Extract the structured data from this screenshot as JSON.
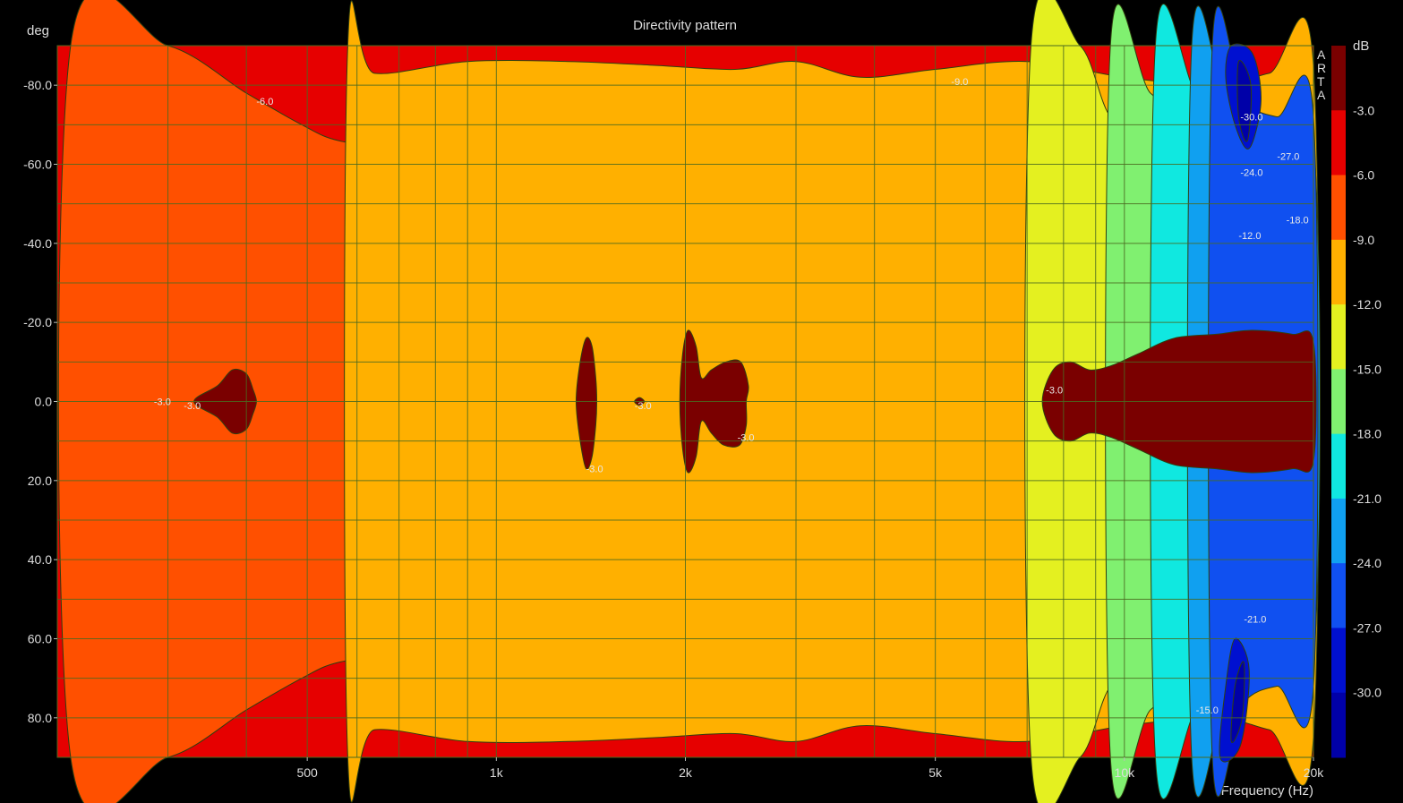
{
  "chart_data": {
    "type": "heatmap",
    "title": "Directivity pattern",
    "xlabel": "Frequency (Hz)",
    "ylabel": "deg",
    "watermark": "ARTA",
    "x_scale": "log",
    "xlim": [
      200,
      20000
    ],
    "x_ticks": [
      {
        "v": 500,
        "label": "500"
      },
      {
        "v": 1000,
        "label": "1k"
      },
      {
        "v": 2000,
        "label": "2k"
      },
      {
        "v": 5000,
        "label": "5k"
      },
      {
        "v": 10000,
        "label": "10k"
      },
      {
        "v": 20000,
        "label": "20k"
      }
    ],
    "ylim": [
      -90,
      90
    ],
    "y_ticks": [
      {
        "v": -80,
        "label": "-80.0"
      },
      {
        "v": -60,
        "label": "-60.0"
      },
      {
        "v": -40,
        "label": "-40.0"
      },
      {
        "v": -20,
        "label": "-20.0"
      },
      {
        "v": 0,
        "label": "0.0"
      },
      {
        "v": 20,
        "label": "20.0"
      },
      {
        "v": 40,
        "label": "40.0"
      },
      {
        "v": 60,
        "label": "60.0"
      },
      {
        "v": 80,
        "label": "80.0"
      }
    ],
    "colorbar": {
      "unit": "dB",
      "levels": [
        "-3.0",
        "-6.0",
        "-9.0",
        "-12.0",
        "-15.0",
        "-18.0",
        "-21.0",
        "-24.0",
        "-27.0",
        "-30.0"
      ],
      "colors": [
        "#7a0000",
        "#e60000",
        "#ff5000",
        "#ffb000",
        "#e4f020",
        "#80f070",
        "#10e8e0",
        "#10a0f0",
        "#1050f0",
        "#0010d0",
        "#0000a8"
      ]
    },
    "regions": [
      {
        "level": -6,
        "color": "#ff5000",
        "points": [
          [
            210,
            90
          ],
          [
            300,
            90
          ],
          [
            400,
            78
          ],
          [
            490,
            70
          ],
          [
            560,
            66
          ],
          [
            700,
            64
          ],
          [
            1000,
            61
          ],
          [
            1300,
            59
          ],
          [
            1800,
            56
          ],
          [
            2200,
            56
          ],
          [
            2500,
            50
          ],
          [
            2800,
            42
          ],
          [
            3200,
            50
          ],
          [
            3800,
            52
          ],
          [
            4500,
            50
          ],
          [
            5500,
            50
          ],
          [
            7000,
            56
          ],
          [
            10000,
            62
          ],
          [
            14000,
            70
          ],
          [
            17000,
            78
          ],
          [
            20000,
            82
          ],
          [
            20000,
            -82
          ],
          [
            17000,
            -78
          ],
          [
            14000,
            -70
          ],
          [
            10000,
            -62
          ],
          [
            7000,
            -56
          ],
          [
            5500,
            -50
          ],
          [
            4500,
            -50
          ],
          [
            3800,
            -52
          ],
          [
            3200,
            -50
          ],
          [
            2800,
            -42
          ],
          [
            2500,
            -50
          ],
          [
            2200,
            -56
          ],
          [
            1800,
            -56
          ],
          [
            1300,
            -59
          ],
          [
            1000,
            -61
          ],
          [
            700,
            -64
          ],
          [
            560,
            -66
          ],
          [
            490,
            -70
          ],
          [
            400,
            -78
          ],
          [
            300,
            -90
          ],
          [
            210,
            -90
          ]
        ]
      },
      {
        "level": -9,
        "color": "#ffb000",
        "points": [
          [
            580,
            90
          ],
          [
            640,
            83
          ],
          [
            900,
            86
          ],
          [
            1300,
            86
          ],
          [
            1800,
            85
          ],
          [
            2400,
            84
          ],
          [
            3000,
            86
          ],
          [
            3800,
            82
          ],
          [
            5000,
            84
          ],
          [
            7000,
            86
          ],
          [
            10000,
            82
          ],
          [
            14000,
            80
          ],
          [
            17000,
            83
          ],
          [
            20000,
            85
          ],
          [
            20000,
            -85
          ],
          [
            17000,
            -83
          ],
          [
            14000,
            -80
          ],
          [
            10000,
            -82
          ],
          [
            7000,
            -86
          ],
          [
            5000,
            -84
          ],
          [
            3800,
            -82
          ],
          [
            3000,
            -86
          ],
          [
            2400,
            -84
          ],
          [
            1800,
            -85
          ],
          [
            1300,
            -86
          ],
          [
            900,
            -86
          ],
          [
            640,
            -83
          ],
          [
            580,
            -90
          ]
        ]
      },
      {
        "level": -12,
        "color": "#e4f020",
        "points": [
          [
            7100,
            90
          ],
          [
            8500,
            90
          ],
          [
            9500,
            72
          ],
          [
            11000,
            66
          ],
          [
            13000,
            62
          ],
          [
            15000,
            54
          ],
          [
            17000,
            45
          ],
          [
            20000,
            40
          ],
          [
            20000,
            -40
          ],
          [
            17000,
            -45
          ],
          [
            15000,
            -54
          ],
          [
            13000,
            -62
          ],
          [
            11000,
            -66
          ],
          [
            9500,
            -72
          ],
          [
            8500,
            -90
          ],
          [
            7100,
            -90
          ]
        ]
      },
      {
        "level": -15,
        "color": "#80f070",
        "points": [
          [
            9500,
            90
          ],
          [
            11000,
            78
          ],
          [
            13000,
            70
          ],
          [
            15000,
            60
          ],
          [
            17000,
            52
          ],
          [
            20000,
            48
          ],
          [
            20000,
            -48
          ],
          [
            17000,
            -52
          ],
          [
            15000,
            -60
          ],
          [
            13000,
            -70
          ],
          [
            11000,
            -78
          ],
          [
            9500,
            -90
          ]
        ]
      },
      {
        "level": -18,
        "color": "#10e8e0",
        "points": [
          [
            11200,
            90
          ],
          [
            13000,
            78
          ],
          [
            15000,
            68
          ],
          [
            17000,
            60
          ],
          [
            20000,
            55
          ],
          [
            20000,
            -55
          ],
          [
            17000,
            -60
          ],
          [
            15000,
            -68
          ],
          [
            13000,
            -78
          ],
          [
            11200,
            -90
          ]
        ]
      },
      {
        "level": -21,
        "color": "#10a0f0",
        "points": [
          [
            12800,
            90
          ],
          [
            14500,
            76
          ],
          [
            16500,
            68
          ],
          [
            20000,
            65
          ],
          [
            20000,
            -65
          ],
          [
            16500,
            -68
          ],
          [
            14500,
            -76
          ],
          [
            12800,
            -90
          ]
        ]
      },
      {
        "level": -24,
        "color": "#1050f0",
        "points": [
          [
            13800,
            90
          ],
          [
            15500,
            76
          ],
          [
            17500,
            72
          ],
          [
            20000,
            72
          ],
          [
            20000,
            -72
          ],
          [
            17500,
            -72
          ],
          [
            15500,
            -76
          ],
          [
            13800,
            -90
          ]
        ]
      },
      {
        "level": -27,
        "color": "#0010d0",
        "points": [
          [
            14800,
            -90
          ],
          [
            16000,
            -88
          ],
          [
            16500,
            -76
          ],
          [
            15800,
            -64
          ],
          [
            15000,
            -70
          ],
          [
            14500,
            -82
          ]
        ]
      },
      {
        "level": -27,
        "color": "#0010d0",
        "points": [
          [
            14200,
            90
          ],
          [
            15300,
            87
          ],
          [
            15800,
            68
          ],
          [
            15000,
            60
          ],
          [
            14500,
            72
          ]
        ]
      },
      {
        "level": -30,
        "color": "#0000a8",
        "points": [
          [
            15200,
            -86
          ],
          [
            15900,
            -80
          ],
          [
            15700,
            -66
          ],
          [
            15200,
            -72
          ]
        ]
      },
      {
        "level": -30,
        "color": "#0000a8",
        "points": [
          [
            14800,
            86
          ],
          [
            15400,
            80
          ],
          [
            15500,
            66
          ],
          [
            15000,
            72
          ]
        ]
      },
      {
        "level": -3,
        "color": "#7a0000",
        "points": [
          [
            330,
            0
          ],
          [
            360,
            4
          ],
          [
            380,
            8
          ],
          [
            400,
            7
          ],
          [
            410,
            3
          ],
          [
            415,
            0
          ],
          [
            410,
            -3
          ],
          [
            400,
            -7
          ],
          [
            380,
            -8
          ],
          [
            360,
            -4
          ]
        ]
      },
      {
        "level": -3,
        "color": "#7a0000",
        "points": [
          [
            1340,
            0
          ],
          [
            1360,
            -10
          ],
          [
            1390,
            -16
          ],
          [
            1420,
            -14
          ],
          [
            1440,
            -6
          ],
          [
            1445,
            0
          ],
          [
            1440,
            6
          ],
          [
            1420,
            14
          ],
          [
            1390,
            17
          ],
          [
            1360,
            10
          ]
        ]
      },
      {
        "level": -3,
        "color": "#7a0000",
        "points": [
          [
            1660,
            0
          ],
          [
            1690,
            -1
          ],
          [
            1720,
            0
          ],
          [
            1690,
            1
          ]
        ]
      },
      {
        "level": -3,
        "color": "#7a0000",
        "points": [
          [
            1960,
            0
          ],
          [
            1980,
            -12
          ],
          [
            2020,
            -18
          ],
          [
            2080,
            -14
          ],
          [
            2120,
            -6
          ],
          [
            2200,
            -8
          ],
          [
            2320,
            -10
          ],
          [
            2450,
            -10
          ],
          [
            2520,
            -4
          ],
          [
            2500,
            0
          ],
          [
            2500,
            6
          ],
          [
            2440,
            11
          ],
          [
            2300,
            11
          ],
          [
            2200,
            8
          ],
          [
            2120,
            5
          ],
          [
            2080,
            14
          ],
          [
            2020,
            18
          ],
          [
            1980,
            12
          ]
        ]
      },
      {
        "level": -3,
        "color": "#7a0000",
        "points": [
          [
            7400,
            0
          ],
          [
            7700,
            -8
          ],
          [
            8200,
            -10
          ],
          [
            8800,
            -8
          ],
          [
            9500,
            -9
          ],
          [
            10500,
            -12
          ],
          [
            12000,
            -16
          ],
          [
            14000,
            -17
          ],
          [
            16000,
            -18
          ],
          [
            18500,
            -17
          ],
          [
            20000,
            -15
          ],
          [
            20000,
            15
          ],
          [
            18500,
            17
          ],
          [
            16000,
            18
          ],
          [
            14000,
            17
          ],
          [
            12000,
            16
          ],
          [
            10500,
            12
          ],
          [
            9500,
            9
          ],
          [
            8800,
            8
          ],
          [
            8200,
            10
          ],
          [
            7700,
            8
          ]
        ]
      }
    ],
    "contour_labels": [
      {
        "freq": 415,
        "deg": -76,
        "text": "-6.0"
      },
      {
        "freq": 5300,
        "deg": -81,
        "text": "-9.0"
      },
      {
        "freq": 285,
        "deg": 0,
        "text": "-3.0"
      },
      {
        "freq": 318,
        "deg": 1,
        "text": "-3.0"
      },
      {
        "freq": 1660,
        "deg": 1,
        "text": "-3.0"
      },
      {
        "freq": 1390,
        "deg": 17,
        "text": "-3.0"
      },
      {
        "freq": 2420,
        "deg": 9,
        "text": "-3.0"
      },
      {
        "freq": 7500,
        "deg": -3,
        "text": "-3.0"
      },
      {
        "freq": 15300,
        "deg": -72,
        "text": "-30.0"
      },
      {
        "freq": 17500,
        "deg": -62,
        "text": "-27.0"
      },
      {
        "freq": 15300,
        "deg": -58,
        "text": "-24.0"
      },
      {
        "freq": 18100,
        "deg": -46,
        "text": "-18.0"
      },
      {
        "freq": 15200,
        "deg": -42,
        "text": "-12.0"
      },
      {
        "freq": 15500,
        "deg": 55,
        "text": "-21.0"
      },
      {
        "freq": 13000,
        "deg": 78,
        "text": "-15.0"
      }
    ]
  }
}
